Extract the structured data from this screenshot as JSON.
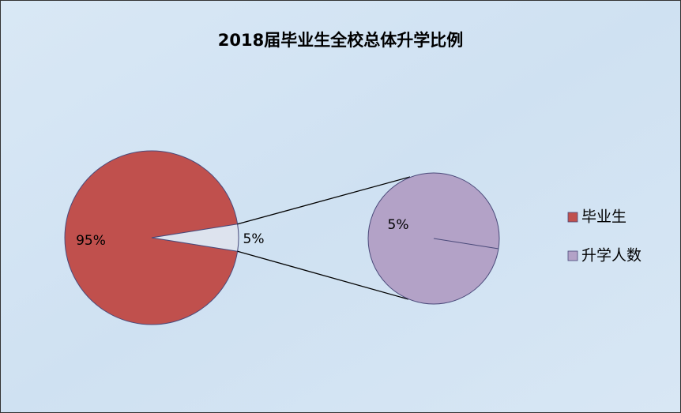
{
  "chart_data": {
    "type": "pie",
    "title": "2018届毕业生全校总体升学比例",
    "categories": [
      "毕业生",
      "升学人数"
    ],
    "values": [
      95,
      5
    ],
    "value_labels": [
      "95%",
      "5%"
    ],
    "colors": [
      "#c0504d",
      "#b3a2c7"
    ]
  }
}
